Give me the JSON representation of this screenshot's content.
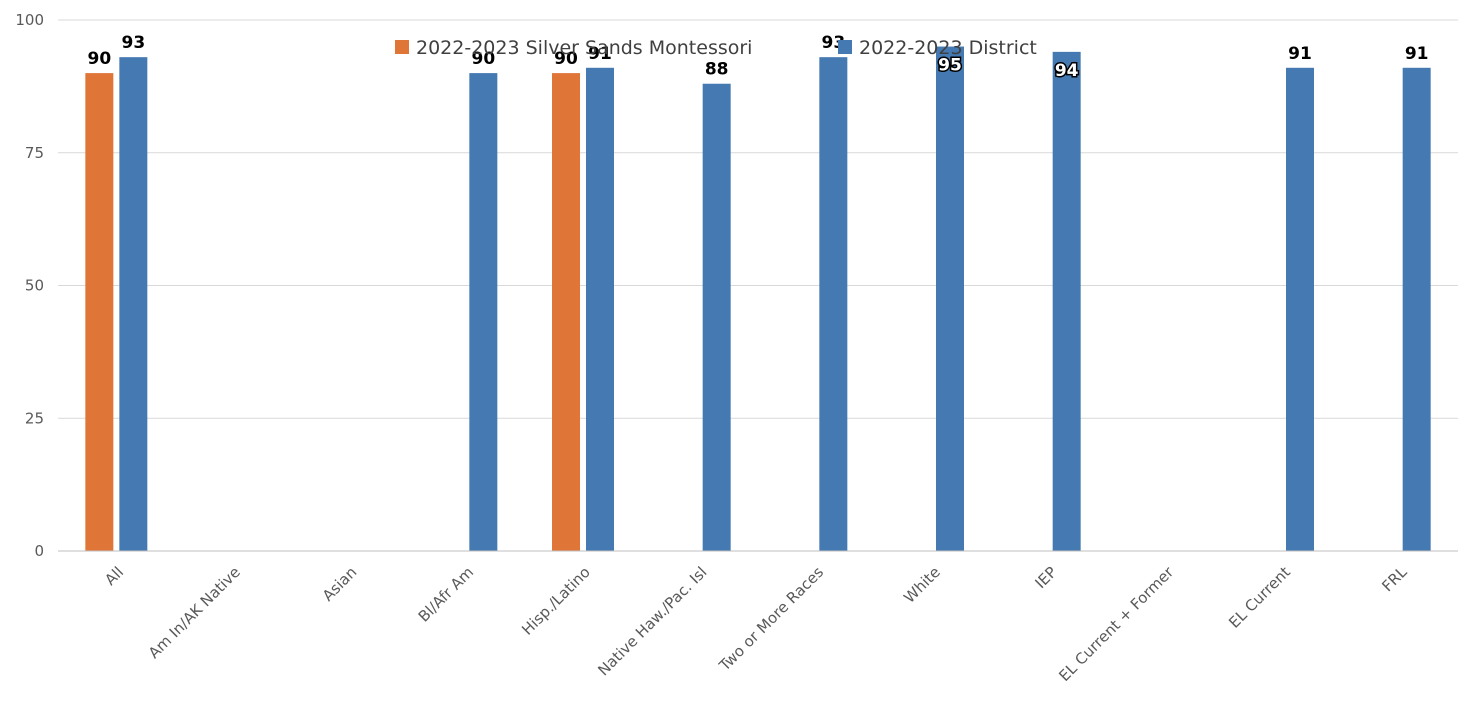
{
  "chart_data": {
    "type": "bar",
    "title": "",
    "xlabel": "",
    "ylabel": "",
    "ylim": [
      0,
      100
    ],
    "yticks": [
      0,
      25,
      50,
      75,
      100
    ],
    "grid": true,
    "legend_position": "top",
    "categories": [
      "All",
      "Am In/AK Native",
      "Asian",
      "Bl/Afr Am",
      "Hisp./Latino",
      "Native Haw./Pac. Isl",
      "Two or More Races",
      "White",
      "IEP",
      "EL Current + Former",
      "EL Current",
      "FRL"
    ],
    "series": [
      {
        "name": "2022-2023 Silver Sands Montessori",
        "color": "#e07538",
        "values": [
          90,
          null,
          null,
          null,
          90,
          null,
          null,
          null,
          null,
          null,
          null,
          null
        ]
      },
      {
        "name": "2022-2023 District",
        "color": "#4479b2",
        "values": [
          93,
          null,
          null,
          90,
          91,
          88,
          93,
          95,
          94,
          null,
          91,
          91
        ]
      }
    ]
  }
}
